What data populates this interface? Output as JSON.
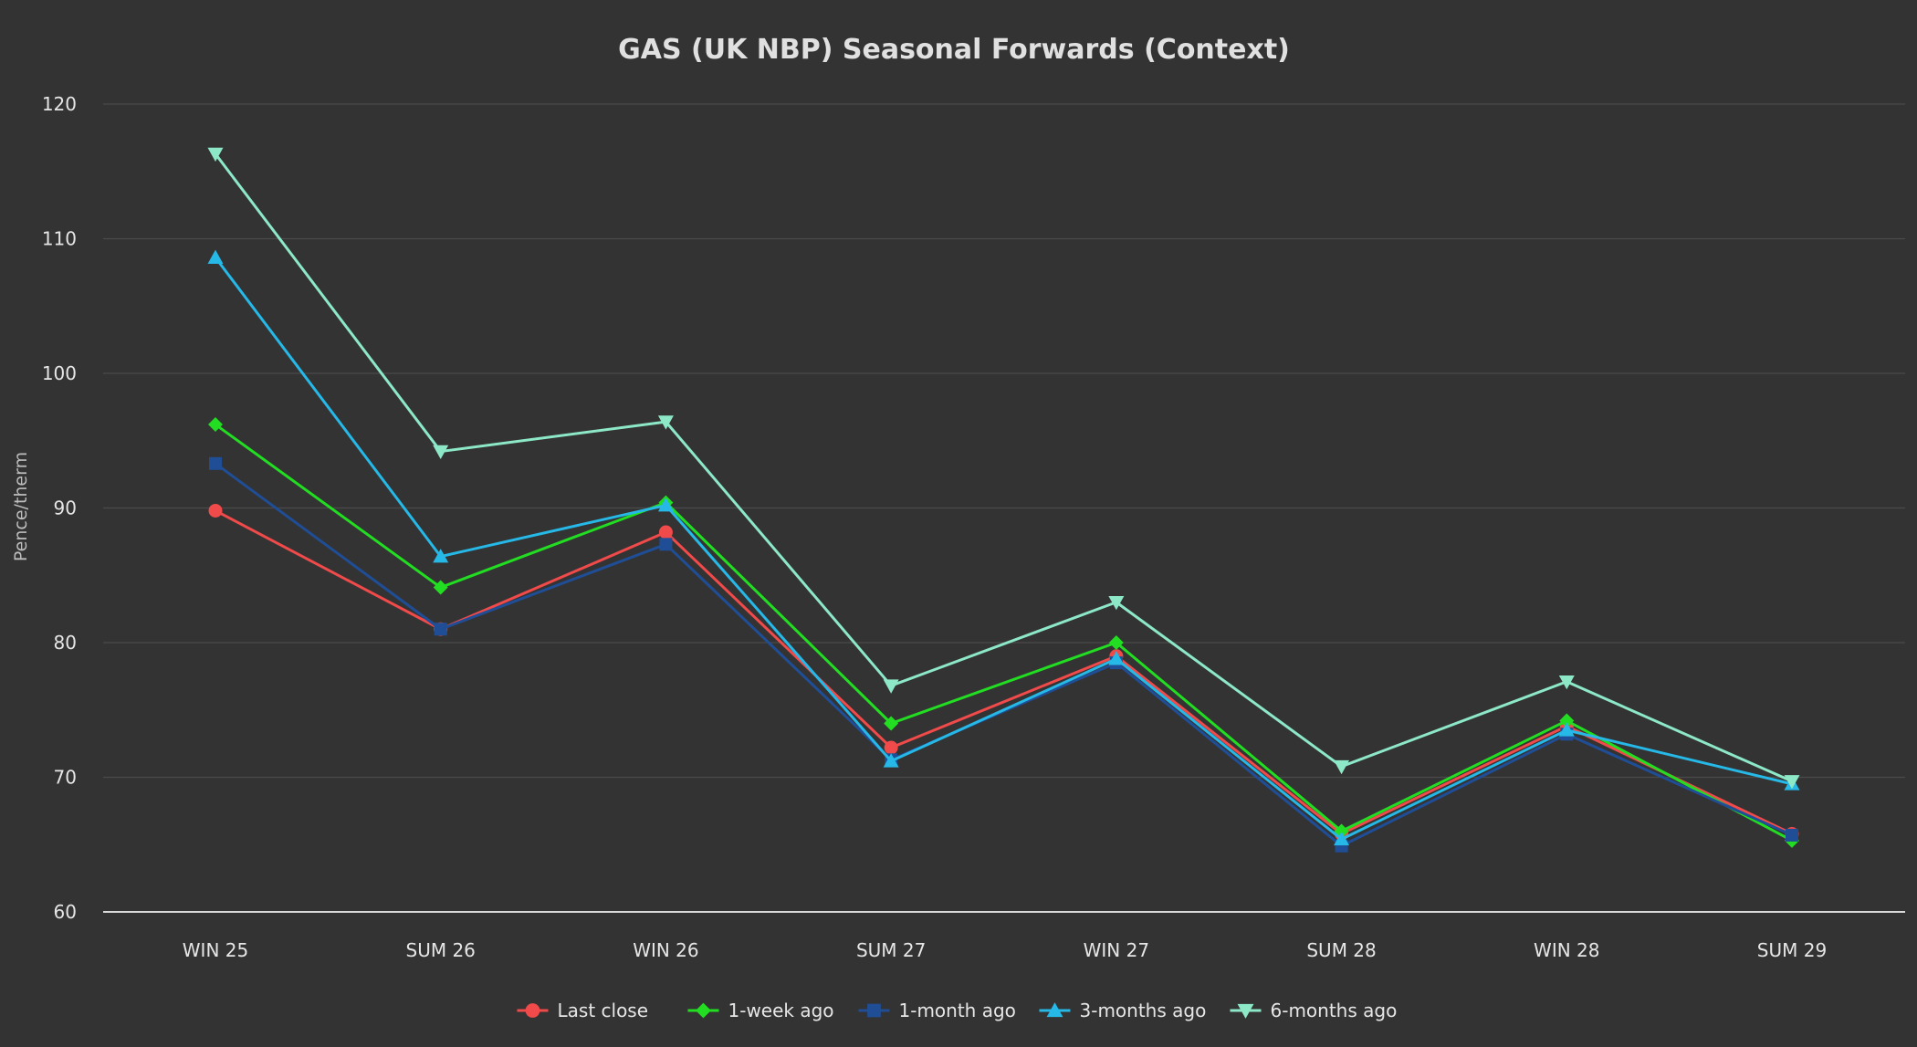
{
  "chart_data": {
    "type": "line",
    "title": "GAS (UK NBP) Seasonal Forwards (Context)",
    "xlabel": "",
    "ylabel": "Pence/therm",
    "categories": [
      "WIN 25",
      "SUM 26",
      "WIN 26",
      "SUM 27",
      "WIN 27",
      "SUM 28",
      "WIN 28",
      "SUM 29"
    ],
    "ylim": [
      60,
      120
    ],
    "yticks": [
      60,
      70,
      80,
      90,
      100,
      110,
      120
    ],
    "grid": true,
    "legend_position": "bottom",
    "series": [
      {
        "name": "Last close",
        "color": "#f04a4a",
        "marker": "circle",
        "values": [
          89.8,
          81.0,
          88.2,
          72.2,
          79.0,
          65.8,
          73.8,
          65.8
        ]
      },
      {
        "name": "1-week ago",
        "color": "#22dd22",
        "marker": "diamond",
        "values": [
          96.2,
          84.1,
          90.4,
          74.0,
          80.0,
          66.0,
          74.2,
          65.3
        ]
      },
      {
        "name": "1-month ago",
        "color": "#1f4e96",
        "marker": "square",
        "values": [
          93.3,
          81.0,
          87.3,
          71.3,
          78.5,
          64.9,
          73.2,
          65.7
        ]
      },
      {
        "name": "3-months ago",
        "color": "#26b8e6",
        "marker": "triangle-up",
        "values": [
          108.6,
          86.4,
          90.2,
          71.2,
          78.8,
          65.4,
          73.5,
          69.5
        ]
      },
      {
        "name": "6-months ago",
        "color": "#8de8c8",
        "marker": "triangle-down",
        "values": [
          116.3,
          94.2,
          96.4,
          76.8,
          83.0,
          70.8,
          77.1,
          69.7
        ]
      }
    ]
  }
}
